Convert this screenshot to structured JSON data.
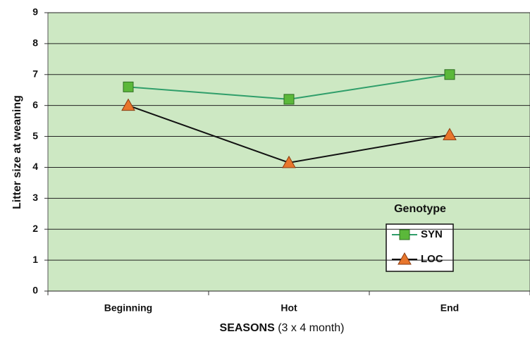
{
  "chart_data": {
    "type": "line",
    "y_label": "Litter size at weaning",
    "x_label": "SEASONS",
    "x_label_note": "(3 x 4 month)",
    "categories": [
      "Beginning",
      "Hot",
      "End"
    ],
    "series": [
      {
        "name": "SYN",
        "color": "#2f9e6a",
        "marker_color": "#5bb83a",
        "marker": "square",
        "values": [
          6.6,
          6.2,
          7.0
        ]
      },
      {
        "name": "LOC",
        "color": "#111111",
        "marker_color": "#e8762c",
        "marker": "triangle",
        "values": [
          6.0,
          4.15,
          5.05
        ]
      }
    ],
    "legend_title": "Genotype",
    "ylim": [
      0,
      9
    ],
    "yticks": [
      0,
      1,
      2,
      3,
      4,
      5,
      6,
      7,
      8,
      9
    ],
    "grid": true,
    "background": "#cde8c3"
  }
}
